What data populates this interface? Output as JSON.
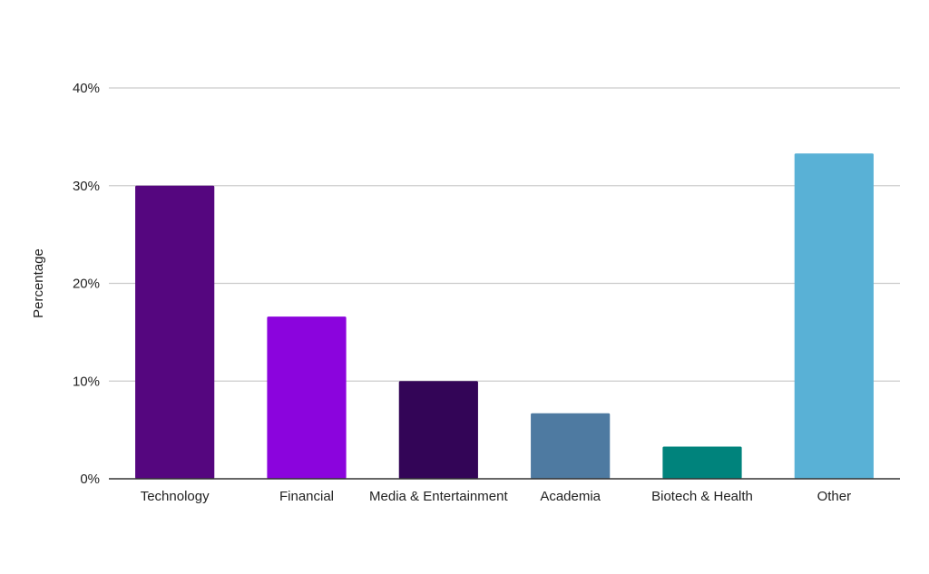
{
  "chart_data": {
    "type": "bar",
    "categories": [
      "Technology",
      "Financial",
      "Media & Entertainment",
      "Academia",
      "Biotech & Health",
      "Other"
    ],
    "values": [
      30,
      16.6,
      10,
      6.7,
      3.3,
      33.3
    ],
    "colors": [
      "#55067f",
      "#8b04dd",
      "#330557",
      "#4e7aa1",
      "#00837c",
      "#59b1d6"
    ],
    "ylabel": "Percentage",
    "ylim": [
      0,
      40
    ],
    "yticks": [
      0,
      10,
      20,
      30,
      40
    ],
    "ytick_labels": [
      "0%",
      "10%",
      "20%",
      "30%",
      "40%"
    ],
    "grid": true,
    "gridline_color": "#cccccc",
    "axis_color": "#333333"
  }
}
